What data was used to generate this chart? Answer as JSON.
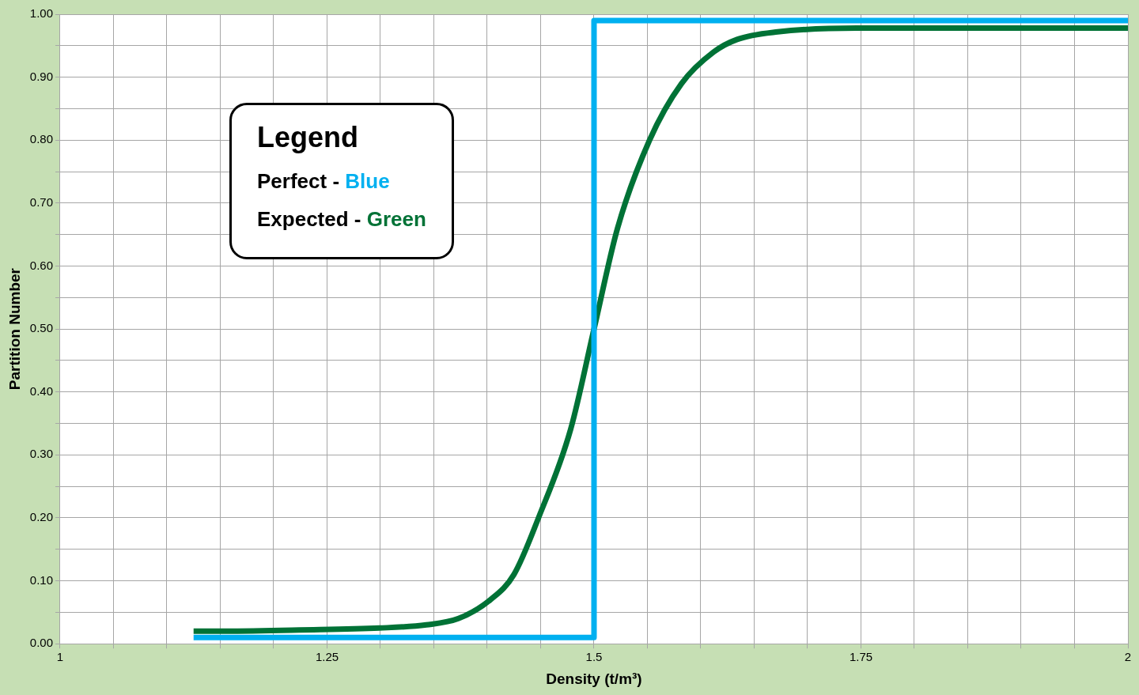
{
  "chart_data": {
    "type": "line",
    "xlabel": "Density (t/m³)",
    "ylabel": "Partition Number",
    "annotations": [
      "Legend",
      "Perfect - Blue",
      "Expected - Green"
    ],
    "grid": true,
    "marker": "none",
    "line_style": "solid",
    "xlim": [
      1,
      2
    ],
    "ylim": [
      0,
      1
    ],
    "xticks": [
      1,
      {
        "value": 1.05,
        "label": null
      },
      {
        "value": 1.1,
        "label": null
      },
      {
        "value": 1.15,
        "label": null
      },
      {
        "value": 1.2,
        "label": null
      },
      1.25,
      {
        "value": 1.3,
        "label": null
      },
      {
        "value": 1.35,
        "label": null
      },
      {
        "value": 1.4,
        "label": null
      },
      {
        "value": 1.45,
        "label": null
      },
      1.5,
      {
        "value": 1.55,
        "label": null
      },
      {
        "value": 1.6,
        "label": null
      },
      {
        "value": 1.65,
        "label": null
      },
      {
        "value": 1.7,
        "label": null
      },
      1.75,
      {
        "value": 1.8,
        "label": null
      },
      {
        "value": 1.85,
        "label": null
      },
      {
        "value": 1.9,
        "label": null
      },
      {
        "value": 1.95,
        "label": null
      },
      2
    ],
    "yticks": [
      {
        "value": 0,
        "label": "0.00"
      },
      {
        "value": 0.05,
        "label": null
      },
      {
        "value": 0.1,
        "label": "0.10"
      },
      {
        "value": 0.15,
        "label": null
      },
      {
        "value": 0.2,
        "label": "0.20"
      },
      {
        "value": 0.25,
        "label": null
      },
      {
        "value": 0.3,
        "label": "0.30"
      },
      {
        "value": 0.35,
        "label": null
      },
      {
        "value": 0.4,
        "label": "0.40"
      },
      {
        "value": 0.45,
        "label": null
      },
      {
        "value": 0.5,
        "label": "0.50"
      },
      {
        "value": 0.55,
        "label": null
      },
      {
        "value": 0.6,
        "label": "0.60"
      },
      {
        "value": 0.65,
        "label": null
      },
      {
        "value": 0.7,
        "label": "0.70"
      },
      {
        "value": 0.75,
        "label": null
      },
      {
        "value": 0.8,
        "label": "0.80"
      },
      {
        "value": 0.85,
        "label": null
      },
      {
        "value": 0.9,
        "label": "0.90"
      },
      {
        "value": 0.95,
        "label": null
      },
      {
        "value": 1,
        "label": "1.00"
      }
    ],
    "series": [
      {
        "color": "#00b0f0",
        "x": [
          1.125,
          1.5,
          1.5,
          2
        ],
        "values": [
          0.01,
          0.01,
          0.99,
          0.99
        ]
      },
      {
        "color": "#007236",
        "x": [
          1.125,
          1.149,
          1.224,
          1.299,
          1.343,
          1.373,
          1.403,
          1.425,
          1.448,
          1.478,
          1.5,
          1.522,
          1.552,
          1.582,
          1.612,
          1.634,
          1.672,
          1.746,
          2
        ],
        "values": [
          0.02,
          0.02,
          0.022,
          0.025,
          0.03,
          0.04,
          0.07,
          0.11,
          0.2,
          0.34,
          0.5,
          0.66,
          0.8,
          0.89,
          0.94,
          0.96,
          0.972,
          0.978,
          0.978
        ]
      }
    ]
  }
}
